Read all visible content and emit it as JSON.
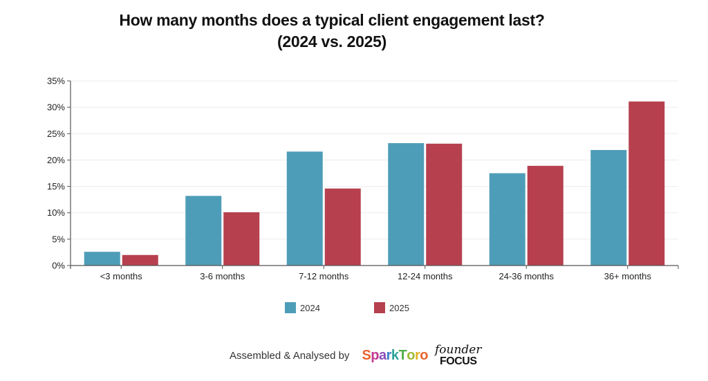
{
  "chart_data": {
    "type": "bar",
    "title": "How many months does a typical client engagement last?",
    "subtitle": "(2024 vs. 2025)",
    "xlabel": "",
    "ylabel": "",
    "categories": [
      "<3 months",
      "3-6 months",
      "7-12 months",
      "12-24 months",
      "24-36 months",
      "36+ months"
    ],
    "series": [
      {
        "name": "2024",
        "color": "#4e9db8",
        "values": [
          2.6,
          13.2,
          21.6,
          23.2,
          17.5,
          21.9
        ]
      },
      {
        "name": "2025",
        "color": "#b7404f",
        "values": [
          2.0,
          10.1,
          14.6,
          23.1,
          18.9,
          31.1
        ]
      }
    ],
    "ylim": [
      0,
      35
    ],
    "yticks": [
      0,
      5,
      10,
      15,
      20,
      25,
      30,
      35
    ],
    "ytick_labels": [
      "0%",
      "5%",
      "10%",
      "15%",
      "20%",
      "25%",
      "30%",
      "35%"
    ],
    "grid": true,
    "legend_position": "bottom-center",
    "unit": "%"
  },
  "legend": [
    {
      "label": "2024",
      "color": "#4e9db8"
    },
    {
      "label": "2025",
      "color": "#b7404f"
    }
  ],
  "footer": {
    "credit_text": "Assembled & Analysed by",
    "logo1": "SparkToro",
    "logo2_top": "founder",
    "logo2_bottom": "FOCUS"
  }
}
